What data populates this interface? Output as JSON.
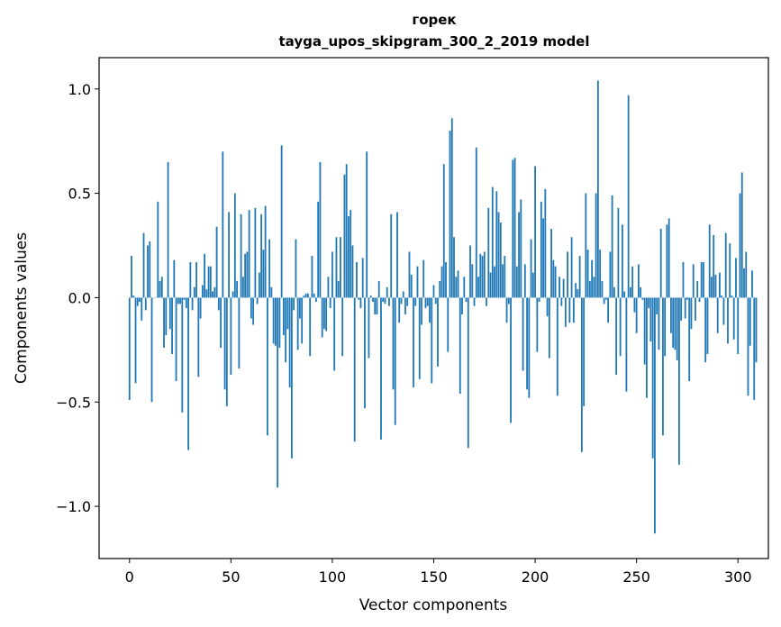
{
  "chart_data": {
    "type": "bar",
    "title_line1": "горек",
    "title_line2": "tayga_upos_skipgram_300_2_2019 model",
    "xlabel": "Vector components",
    "ylabel": "Components values",
    "xlim": [
      -15,
      315
    ],
    "ylim": [
      -1.25,
      1.15
    ],
    "xticks": [
      0,
      50,
      100,
      150,
      200,
      250,
      300
    ],
    "yticks": [
      -1.0,
      -0.5,
      0.0,
      0.5,
      1.0
    ],
    "xtick_labels": [
      "0",
      "50",
      "100",
      "150",
      "200",
      "250",
      "300"
    ],
    "ytick_labels": [
      "−1.0",
      "−0.5",
      "0.0",
      "0.5",
      "1.0"
    ],
    "bar_color": "#1f77b4",
    "values": [
      -0.49,
      0.2,
      0.01,
      -0.41,
      -0.04,
      -0.02,
      -0.11,
      0.31,
      -0.06,
      0.25,
      0.27,
      -0.5,
      0.0,
      0.0,
      0.46,
      0.08,
      0.1,
      -0.24,
      -0.18,
      0.65,
      -0.15,
      -0.27,
      0.18,
      -0.4,
      -0.03,
      -0.03,
      -0.55,
      -0.01,
      -0.05,
      -0.73,
      0.17,
      -0.06,
      0.05,
      0.17,
      -0.38,
      -0.1,
      0.06,
      0.21,
      0.04,
      0.15,
      0.15,
      0.03,
      0.05,
      0.34,
      -0.06,
      -0.24,
      0.7,
      -0.44,
      -0.52,
      0.41,
      -0.37,
      0.03,
      0.5,
      0.08,
      -0.34,
      0.4,
      0.1,
      0.21,
      0.22,
      0.42,
      -0.1,
      -0.13,
      0.43,
      -0.03,
      0.12,
      0.4,
      0.23,
      0.44,
      -0.66,
      0.28,
      0.05,
      -0.22,
      -0.23,
      -0.91,
      -0.24,
      0.73,
      -0.18,
      -0.31,
      -0.15,
      -0.43,
      -0.77,
      -0.06,
      0.28,
      -0.25,
      -0.1,
      -0.22,
      0.01,
      0.02,
      0.02,
      -0.28,
      0.2,
      0.02,
      -0.02,
      0.46,
      0.65,
      -0.19,
      -0.15,
      -0.16,
      0.1,
      -0.05,
      0.22,
      -0.35,
      0.29,
      0.08,
      0.29,
      -0.28,
      0.59,
      0.64,
      0.39,
      0.42,
      0.25,
      -0.69,
      0.17,
      -0.01,
      -0.05,
      0.19,
      -0.53,
      0.7,
      -0.29,
      0.01,
      -0.02,
      -0.08,
      -0.08,
      0.08,
      -0.68,
      -0.02,
      -0.03,
      0.05,
      -0.04,
      0.4,
      -0.44,
      -0.61,
      0.41,
      -0.12,
      -0.03,
      0.03,
      -0.08,
      -0.04,
      0.22,
      0.11,
      -0.43,
      -0.04,
      0.15,
      -0.39,
      -0.13,
      0.18,
      -0.05,
      -0.04,
      -0.12,
      -0.41,
      0.06,
      -0.03,
      -0.33,
      0.08,
      0.15,
      0.64,
      0.17,
      -0.26,
      0.8,
      0.86,
      0.29,
      0.1,
      0.13,
      -0.46,
      -0.08,
      0.1,
      -0.02,
      -0.72,
      0.25,
      0.16,
      -0.04,
      0.72,
      0.1,
      0.21,
      0.2,
      0.22,
      -0.04,
      0.43,
      0.12,
      0.53,
      0.15,
      0.51,
      0.41,
      0.36,
      0.16,
      0.2,
      -0.12,
      -0.03,
      -0.6,
      0.66,
      0.67,
      0.15,
      0.41,
      0.47,
      -0.35,
      0.16,
      -0.44,
      -0.48,
      0.28,
      0.12,
      0.63,
      -0.26,
      -0.02,
      0.46,
      0.38,
      0.52,
      -0.09,
      -0.29,
      0.33,
      0.18,
      0.15,
      -0.47,
      0.1,
      -0.04,
      0.09,
      -0.14,
      0.22,
      -0.12,
      0.29,
      -0.12,
      0.07,
      0.04,
      0.2,
      -0.74,
      -0.52,
      0.5,
      0.23,
      0.08,
      0.18,
      0.1,
      0.5,
      1.04,
      0.23,
      0.08,
      -0.03,
      -0.01,
      -0.12,
      0.22,
      0.49,
      0.05,
      -0.37,
      0.43,
      -0.28,
      0.35,
      0.03,
      -0.45,
      0.97,
      0.05,
      0.15,
      -0.07,
      -0.17,
      0.16,
      0.05,
      -0.01,
      -0.32,
      -0.48,
      -0.05,
      -0.21,
      -0.77,
      -1.13,
      -0.08,
      -0.25,
      0.33,
      -0.66,
      -0.28,
      0.35,
      0.38,
      -0.17,
      -0.24,
      -0.25,
      -0.3,
      -0.8,
      -0.11,
      0.17,
      -0.1,
      -0.01,
      -0.4,
      -0.15,
      0.16,
      -0.11,
      0.08,
      -0.02,
      0.17,
      0.17,
      -0.31,
      -0.27,
      0.35,
      0.1,
      0.3,
      0.11,
      -0.17,
      0.12,
      0.01,
      -0.13,
      0.31,
      -0.22,
      0.26,
      0.01,
      -0.2,
      0.19,
      -0.27,
      0.5,
      0.6,
      0.14,
      0.22,
      -0.47,
      -0.23,
      0.13,
      -0.49,
      -0.31
    ]
  }
}
